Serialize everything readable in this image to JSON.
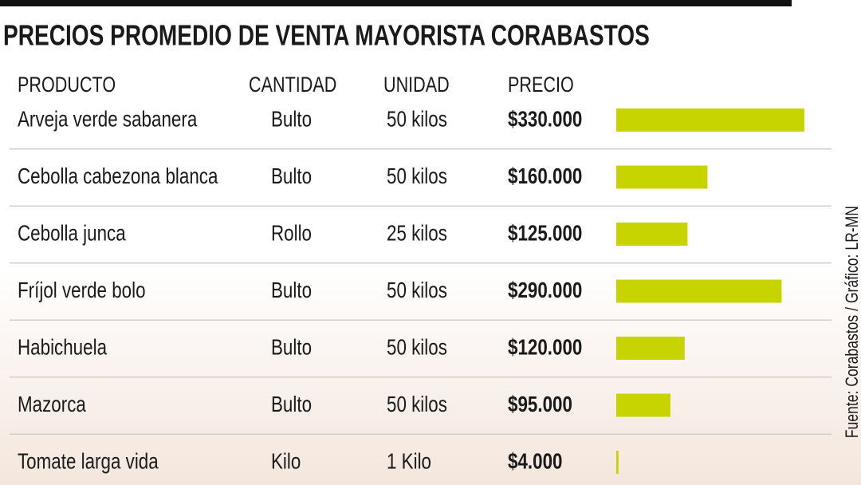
{
  "chart_data": {
    "type": "bar",
    "title": "PRECIOS PROMEDIO DE VENTA MAYORISTA CORABASTOS",
    "headers": [
      "PRODUCTO",
      "CANTIDAD",
      "UNIDAD",
      "PRECIO"
    ],
    "categories": [
      "Arveja verde sabanera",
      "Cebolla cabezona blanca",
      "Cebolla junca",
      "Fríjol verde bolo",
      "Habichuela",
      "Mazorca",
      "Tomate larga vida"
    ],
    "cantidad": [
      "Bulto",
      "Bulto",
      "Rollo",
      "Bulto",
      "Bulto",
      "Bulto",
      "Kilo"
    ],
    "unidad": [
      "50 kilos",
      "50 kilos",
      "25 kilos",
      "50 kilos",
      "50 kilos",
      "50 kilos",
      "1 Kilo"
    ],
    "values": [
      330000,
      160000,
      125000,
      290000,
      120000,
      95000,
      4000
    ],
    "value_labels": [
      "$330.000",
      "$160.000",
      "$125.000",
      "$290.000",
      "$120.000",
      "$95.000",
      "$4.000"
    ],
    "color": "#c8d400",
    "source": "Fuente: Corabastos / Gráfico: LR-MN"
  }
}
